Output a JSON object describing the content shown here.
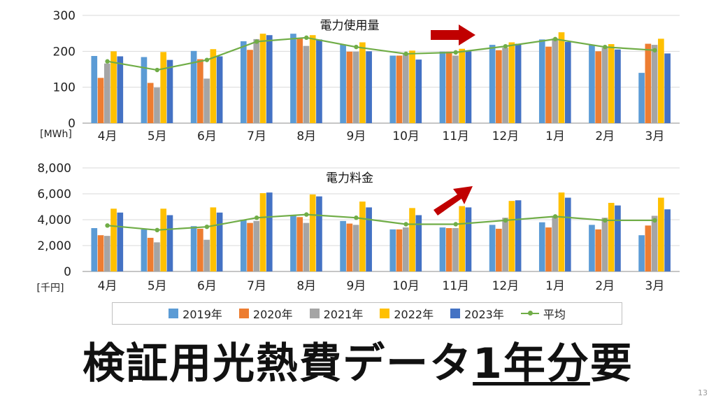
{
  "chart_data": [
    {
      "type": "bar",
      "title": "電力使用量",
      "unit_label": "[MWh]",
      "ylim": [
        0,
        300
      ],
      "yticks": [
        "0",
        "100",
        "200",
        "300"
      ],
      "categories": [
        "4月",
        "5月",
        "6月",
        "7月",
        "8月",
        "9月",
        "10月",
        "11月",
        "12月",
        "1月",
        "2月",
        "3月"
      ],
      "series": [
        {
          "name": "2019年",
          "color": "#5b9bd5",
          "values": [
            187,
            184,
            201,
            228,
            249,
            219,
            188,
            199,
            218,
            233,
            218,
            140
          ]
        },
        {
          "name": "2020年",
          "color": "#ed7d31",
          "values": [
            126,
            112,
            178,
            204,
            236,
            199,
            188,
            199,
            203,
            213,
            200,
            221
          ]
        },
        {
          "name": "2021年",
          "color": "#a5a5a5",
          "values": [
            166,
            99,
            124,
            234,
            215,
            199,
            194,
            188,
            210,
            236,
            210,
            218
          ]
        },
        {
          "name": "2022年",
          "color": "#ffc000",
          "values": [
            200,
            198,
            206,
            249,
            245,
            225,
            202,
            207,
            225,
            253,
            220,
            235
          ]
        },
        {
          "name": "2023年",
          "color": "#4472c4",
          "values": [
            186,
            176,
            186,
            245,
            233,
            200,
            177,
            200,
            221,
            226,
            205,
            194
          ]
        }
      ],
      "average": {
        "name": "平均",
        "color": "#70ad47",
        "values": [
          172,
          148,
          176,
          227,
          238,
          212,
          193,
          197,
          214,
          234,
          212,
          203
        ]
      }
    },
    {
      "type": "bar",
      "title": "電力料金",
      "unit_label": "[千円]",
      "ylim": [
        0,
        8000
      ],
      "yticks": [
        "0",
        "2,000",
        "4,000",
        "6,000",
        "8,000"
      ],
      "categories": [
        "4月",
        "5月",
        "6月",
        "7月",
        "8月",
        "9月",
        "10月",
        "11月",
        "12月",
        "1月",
        "2月",
        "3月"
      ],
      "series": [
        {
          "name": "2019年",
          "color": "#5b9bd5",
          "values": [
            3350,
            3250,
            3500,
            4000,
            4300,
            3900,
            3250,
            3400,
            3600,
            3800,
            3600,
            2800
          ]
        },
        {
          "name": "2020年",
          "color": "#ed7d31",
          "values": [
            2800,
            2600,
            3300,
            3750,
            4200,
            3700,
            3250,
            3350,
            3300,
            3400,
            3250,
            3550
          ]
        },
        {
          "name": "2021年",
          "color": "#a5a5a5",
          "values": [
            2750,
            2250,
            2450,
            3900,
            3750,
            3600,
            3400,
            3350,
            4150,
            4300,
            4150,
            4300
          ]
        },
        {
          "name": "2022年",
          "color": "#ffc000",
          "values": [
            4850,
            4850,
            4950,
            6050,
            5950,
            5400,
            4900,
            5050,
            5450,
            6100,
            5300,
            5700
          ]
        },
        {
          "name": "2023年",
          "color": "#4472c4",
          "values": [
            4550,
            4350,
            4550,
            6100,
            5800,
            4950,
            4350,
            4950,
            5500,
            5700,
            5100,
            4800
          ]
        }
      ],
      "average": {
        "name": "平均",
        "color": "#70ad47",
        "values": [
          3550,
          3200,
          3450,
          4150,
          4400,
          4150,
          3650,
          3650,
          3950,
          4250,
          3950,
          3950
        ]
      }
    }
  ],
  "legend": [
    {
      "label": "2019年",
      "color": "#5b9bd5",
      "kind": "bar"
    },
    {
      "label": "2020年",
      "color": "#ed7d31",
      "kind": "bar"
    },
    {
      "label": "2021年",
      "color": "#a5a5a5",
      "kind": "bar"
    },
    {
      "label": "2022年",
      "color": "#ffc000",
      "kind": "bar"
    },
    {
      "label": "2023年",
      "color": "#4472c4",
      "kind": "bar"
    },
    {
      "label": "平均",
      "color": "#70ad47",
      "kind": "line"
    }
  ],
  "headline": {
    "prefix": "検証用光熱費データ",
    "underlined": "1年分",
    "suffix": "要"
  },
  "page_number": "13",
  "arrow_color": "#c00000"
}
